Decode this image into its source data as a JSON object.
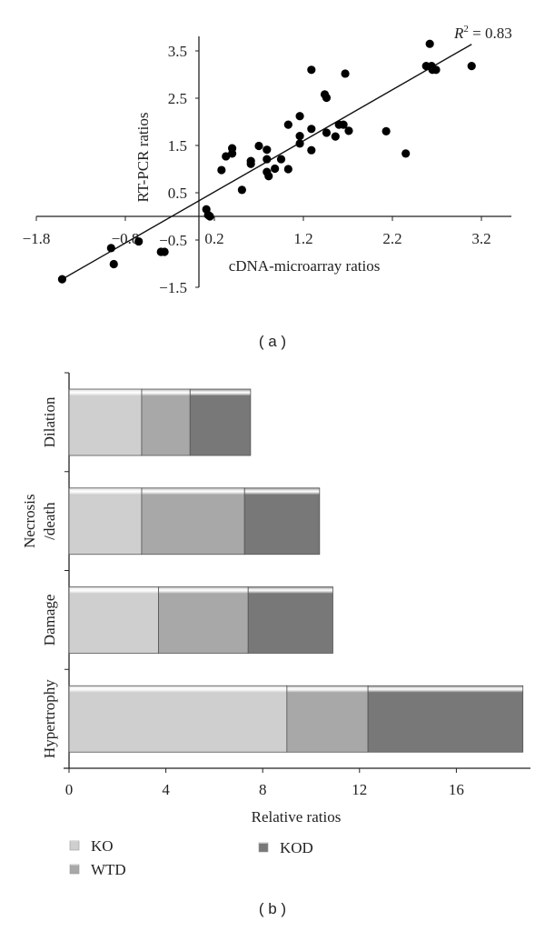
{
  "chart_data": [
    {
      "type": "scatter",
      "panel_label": "( a )",
      "xlabel": "cDNA-microarray ratios",
      "ylabel": "RT-PCR ratios",
      "annotation": {
        "r2_prefix": "R",
        "r2_sup": "2",
        "r2_rest": " = 0.83"
      },
      "xticks": [
        "−1.8",
        "−0.8",
        "0.2",
        "1.2",
        "2.2",
        "3.2"
      ],
      "xtick_values": [
        -1.8,
        -0.8,
        0.2,
        1.2,
        2.2,
        3.2
      ],
      "yticks": [
        "3.5",
        "2.5",
        "1.5",
        "0.5",
        "−0.5",
        "−1.5"
      ],
      "ytick_values": [
        3.5,
        2.5,
        1.5,
        0.5,
        -0.5,
        -1.5
      ],
      "xlim": [
        -1.8,
        3.5
      ],
      "ylim": [
        -1.5,
        3.8
      ],
      "trendline": [
        [
          -1.51,
          -1.33
        ],
        [
          3.09,
          3.64
        ]
      ],
      "points": [
        [
          -1.51,
          -1.33
        ],
        [
          -0.96,
          -0.67
        ],
        [
          -0.93,
          -1.01
        ],
        [
          -0.65,
          -0.53
        ],
        [
          -0.4,
          -0.75
        ],
        [
          -0.36,
          -0.75
        ],
        [
          0.11,
          0.15
        ],
        [
          0.13,
          0.03
        ],
        [
          0.15,
          0.0
        ],
        [
          0.28,
          0.98
        ],
        [
          0.33,
          1.27
        ],
        [
          0.4,
          1.44
        ],
        [
          0.4,
          1.33
        ],
        [
          0.51,
          0.56
        ],
        [
          0.61,
          1.17
        ],
        [
          0.61,
          1.11
        ],
        [
          0.7,
          1.49
        ],
        [
          0.79,
          1.41
        ],
        [
          0.79,
          1.21
        ],
        [
          0.79,
          0.94
        ],
        [
          0.81,
          0.85
        ],
        [
          0.88,
          1.01
        ],
        [
          0.95,
          1.21
        ],
        [
          1.03,
          1.94
        ],
        [
          1.03,
          1.0
        ],
        [
          1.16,
          2.12
        ],
        [
          1.16,
          1.7
        ],
        [
          1.16,
          1.54
        ],
        [
          1.29,
          3.1
        ],
        [
          1.29,
          1.85
        ],
        [
          1.29,
          1.4
        ],
        [
          1.44,
          2.58
        ],
        [
          1.46,
          2.51
        ],
        [
          1.46,
          1.77
        ],
        [
          1.56,
          1.69
        ],
        [
          1.6,
          1.94
        ],
        [
          1.65,
          1.94
        ],
        [
          1.67,
          3.02
        ],
        [
          1.71,
          1.81
        ],
        [
          2.13,
          1.8
        ],
        [
          2.35,
          1.33
        ],
        [
          2.62,
          3.65
        ],
        [
          2.58,
          3.18
        ],
        [
          2.64,
          3.18
        ],
        [
          2.65,
          3.1
        ],
        [
          2.69,
          3.1
        ],
        [
          3.09,
          3.18
        ]
      ]
    },
    {
      "type": "bar",
      "orientation": "horizontal-stacked",
      "panel_label": "( b )",
      "xlabel": "Relative ratios",
      "categories": [
        "Dilation",
        "Necrosis /death",
        "Damage",
        "Hypertrophy"
      ],
      "category_lines": [
        [
          "Dilation"
        ],
        [
          "Necrosis",
          "/death"
        ],
        [
          "Damage"
        ],
        [
          "Hypertrophy"
        ]
      ],
      "xticks": [
        "0",
        "4",
        "8",
        "12",
        "16"
      ],
      "xtick_values": [
        0,
        4,
        8,
        12,
        16
      ],
      "xlim": [
        0,
        19
      ],
      "series": [
        {
          "name": "KO",
          "color": "#cfcfcf",
          "values": [
            3.0,
            3.0,
            3.7,
            9.0
          ]
        },
        {
          "name": "WTD",
          "color": "#a8a8a8",
          "values": [
            2.0,
            4.25,
            3.7,
            3.35
          ]
        },
        {
          "name": "KOD",
          "color": "#787878",
          "values": [
            2.5,
            3.1,
            3.5,
            6.4
          ]
        }
      ],
      "legend": "bottom"
    }
  ]
}
